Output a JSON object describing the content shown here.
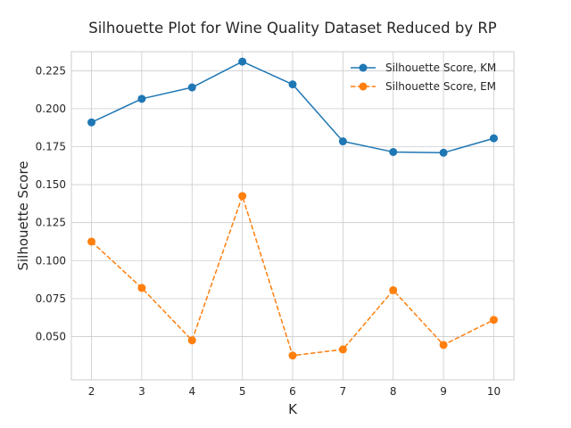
{
  "chart_data": {
    "type": "line",
    "title": "Silhouette Plot for Wine Quality Dataset Reduced by RP",
    "xlabel": "K",
    "ylabel": "Silhouette Score",
    "x": [
      2,
      3,
      4,
      5,
      6,
      7,
      8,
      9,
      10
    ],
    "x_ticks": [
      "2",
      "3",
      "4",
      "5",
      "6",
      "7",
      "8",
      "9",
      "10"
    ],
    "xlim": [
      1.6,
      10.4
    ],
    "ylim": [
      0.0215,
      0.2375
    ],
    "y_ticks": [
      0.05,
      0.075,
      0.1,
      0.125,
      0.15,
      0.175,
      0.2,
      0.225
    ],
    "y_tick_labels": [
      "0.050",
      "0.075",
      "0.100",
      "0.125",
      "0.150",
      "0.175",
      "0.200",
      "0.225"
    ],
    "grid": true,
    "legend_position": "top-right",
    "series": [
      {
        "name": "Silhouette Score, KM",
        "values": [
          0.191,
          0.2065,
          0.214,
          0.231,
          0.216,
          0.1785,
          0.1715,
          0.171,
          0.1805
        ],
        "color": "#1f77b4",
        "line_style": "solid",
        "marker": "circle"
      },
      {
        "name": "Silhouette Score, EM",
        "values": [
          0.1125,
          0.082,
          0.0475,
          0.1425,
          0.0375,
          0.0415,
          0.0805,
          0.0445,
          0.061
        ],
        "color": "#ff7f0e",
        "line_style": "dashed",
        "marker": "circle"
      }
    ]
  }
}
